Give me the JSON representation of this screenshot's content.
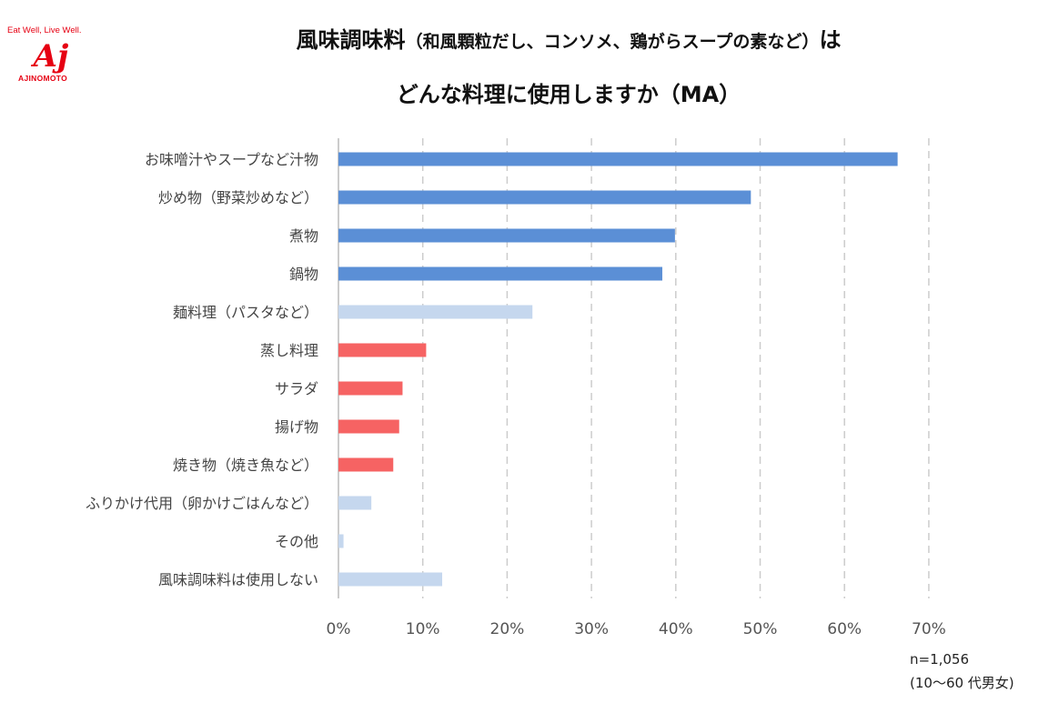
{
  "logo": {
    "tagline": "Eat Well, Live Well.",
    "mark": "Aj",
    "brand": "AJINOMOTO"
  },
  "header": {
    "title_line1_main": "風味調味料",
    "title_line1_paren": "（和風顆粒だし、コンソメ、鶏がらスープの素など）",
    "title_line1_end": "は",
    "title_line2": "どんな料理に使用しますか（MA）"
  },
  "colors": {
    "dark_blue": "#5b8fd6",
    "light_blue": "#c5d7ee",
    "red": "#f66363",
    "grid": "#cccccc",
    "axis": "#bbbbbb"
  },
  "chart_data": {
    "type": "bar",
    "orientation": "horizontal",
    "categories": [
      "お味噌汁やスープなど汁物",
      "炒め物（野菜炒めなど）",
      "煮物",
      "鍋物",
      "麺料理（パスタなど）",
      "蒸し料理",
      "サラダ",
      "揚げ物",
      "焼き物（焼き魚など）",
      "ふりかけ代用（卵かけごはんなど）",
      "その他",
      "風味調味料は使用しない"
    ],
    "values": [
      66.3,
      48.9,
      39.9,
      38.4,
      23.0,
      10.4,
      7.6,
      7.2,
      6.5,
      3.9,
      0.6,
      12.3
    ],
    "bar_colors": [
      "dark_blue",
      "dark_blue",
      "dark_blue",
      "dark_blue",
      "light_blue",
      "red",
      "red",
      "red",
      "red",
      "light_blue",
      "light_blue",
      "light_blue"
    ],
    "xlim": [
      0,
      70
    ],
    "xticks": [
      0,
      10,
      20,
      30,
      40,
      50,
      60,
      70
    ],
    "tick_labels": [
      "0%",
      "10%",
      "20%",
      "30%",
      "40%",
      "50%",
      "60%",
      "70%"
    ],
    "grid": "vertical dashed",
    "xlabel": "",
    "ylabel": ""
  },
  "notes": {
    "sample": "n=1,056",
    "demographic": "(10～60 代男女)"
  }
}
